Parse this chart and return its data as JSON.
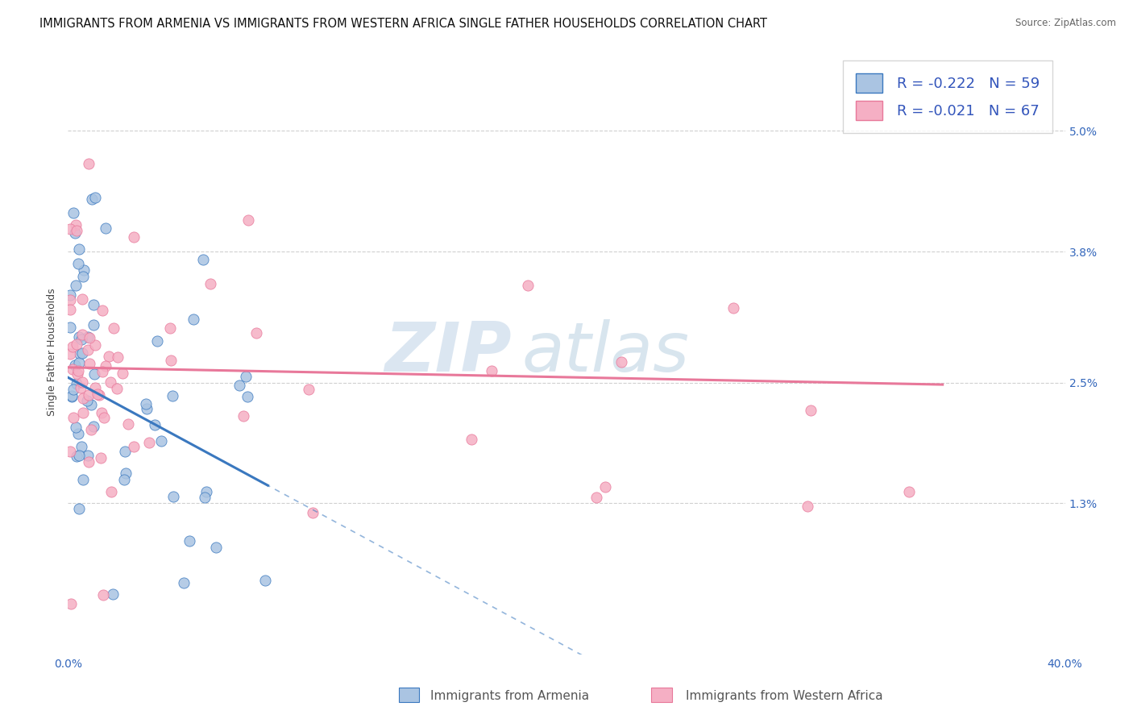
{
  "title": "IMMIGRANTS FROM ARMENIA VS IMMIGRANTS FROM WESTERN AFRICA SINGLE FATHER HOUSEHOLDS CORRELATION CHART",
  "source": "Source: ZipAtlas.com",
  "ylabel": "Single Father Households",
  "xlim": [
    0.0,
    0.4
  ],
  "ylim": [
    -0.002,
    0.058
  ],
  "ytick_positions": [
    0.013,
    0.025,
    0.038,
    0.05
  ],
  "ytick_labels": [
    "1.3%",
    "2.5%",
    "3.8%",
    "5.0%"
  ],
  "legend_r1": "-0.222",
  "legend_n1": "59",
  "legend_r2": "-0.021",
  "legend_n2": "67",
  "color_armenia": "#aac4e2",
  "color_w_africa": "#f5afc4",
  "color_line_armenia": "#3a78bf",
  "color_line_w_africa": "#e8789a",
  "watermark_zip": "ZIP",
  "watermark_atlas": "atlas",
  "title_fontsize": 10.5,
  "axis_label_fontsize": 9,
  "tick_fontsize": 10,
  "background_color": "#ffffff",
  "arm_line_x0": 0.0,
  "arm_line_y0": 0.0255,
  "arm_line_x1": 0.08,
  "arm_line_y1": 0.0148,
  "arm_line_solid_end": 0.08,
  "waf_line_x0": 0.0,
  "waf_line_y0": 0.0265,
  "waf_line_x1": 0.35,
  "waf_line_y1": 0.0248
}
